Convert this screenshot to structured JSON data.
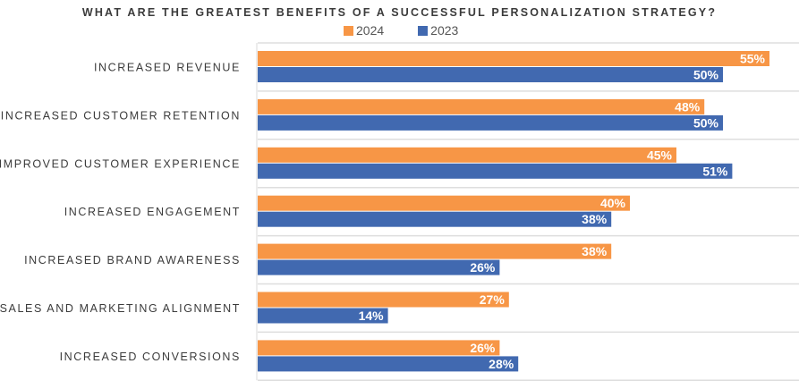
{
  "chart_data": {
    "type": "bar",
    "orientation": "horizontal",
    "title": "WHAT ARE THE GREATEST BENEFITS OF A SUCCESSFUL PERSONALIZATION STRATEGY?",
    "categories": [
      "INCREASED REVENUE",
      "INCREASED CUSTOMER RETENTION",
      "IMPROVED CUSTOMER EXPERIENCE",
      "INCREASED ENGAGEMENT",
      "INCREASED BRAND AWARENESS",
      "SALES AND MARKETING ALIGNMENT",
      "INCREASED CONVERSIONS"
    ],
    "series": [
      {
        "name": "2024",
        "color": "#F79646",
        "values": [
          55,
          48,
          45,
          40,
          38,
          27,
          26
        ]
      },
      {
        "name": "2023",
        "color": "#4169B0",
        "values": [
          50,
          50,
          51,
          38,
          26,
          14,
          28
        ]
      }
    ],
    "value_suffix": "%",
    "xlim": [
      0,
      58
    ],
    "grid": "horizontal separators",
    "legend": "top"
  }
}
